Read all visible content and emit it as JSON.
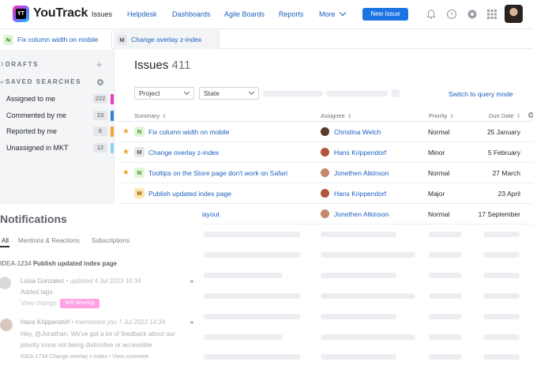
{
  "app": {
    "brand": "YouTrack",
    "logo_text": "YT",
    "nav": [
      "Issues",
      "Helpdesk",
      "Dashboards",
      "Agile Boards",
      "Reports",
      "More"
    ],
    "new_issue": "New Issue",
    "icons": [
      "bell-icon",
      "help-icon",
      "settings-icon",
      "apps-grid-icon"
    ]
  },
  "tabs": [
    {
      "badge": "N",
      "label": "Fix column width on mobile"
    },
    {
      "badge": "M",
      "label": "Change overlay z-index"
    }
  ],
  "sidebar": {
    "drafts": "DRAFTS",
    "saved_searches": "SAVED SEARCHES",
    "items": [
      {
        "label": "Assigned to me",
        "count": "222",
        "color": "#e73ec0"
      },
      {
        "label": "Commented by me",
        "count": "23",
        "color": "#2f7fd9"
      },
      {
        "label": "Reported by me",
        "count": "6",
        "color": "#f0a531"
      },
      {
        "label": "Unassigned in MKT",
        "count": "12",
        "color": "#8fd0f7"
      }
    ]
  },
  "main": {
    "title": "Issues",
    "count": "411",
    "filters": [
      "Project",
      "State"
    ],
    "query_link": "Switch to query mode",
    "columns": {
      "summary": "Summary",
      "assignee": "Assignee",
      "priority": "Priority",
      "due": "Due Date"
    },
    "rows": [
      {
        "starred": true,
        "badge": "N",
        "summary": "Fix column width on mobile",
        "assignee": "Christina Welch",
        "priority": "Normal",
        "due": "25 January",
        "avatar": "#5a3b2b"
      },
      {
        "starred": true,
        "badge": "M",
        "summary": "Change overlay z-index",
        "assignee": "Hans Krippendorf",
        "priority": "Minor",
        "due": "5 February",
        "avatar": "#b2553a"
      },
      {
        "starred": true,
        "badge": "N",
        "summary": "Tooltips on the Store page don't work on Safari",
        "assignee": "Jonethen Atkinson",
        "priority": "Normal",
        "due": "27 March",
        "avatar": "#c4896a"
      },
      {
        "starred": false,
        "badge": "M",
        "summary": "Publish updated index page",
        "assignee": "Hans Krippendorf",
        "priority": "Major",
        "due": "23 April",
        "avatar": "#b2553a"
      },
      {
        "starred": false,
        "badge": "",
        "summary": "e layout",
        "assignee": "Jonethen Atkinson",
        "priority": "Normal",
        "due": "17 September",
        "avatar": "#c4896a"
      }
    ],
    "star_glyph": "★"
  },
  "notifications": {
    "title": "Notifications",
    "tabs": [
      "All",
      "Mentions & Reactions",
      "Subscriptions"
    ],
    "issue_id": "IDEA-1234",
    "issue_title": "Publish updated index page",
    "items": [
      {
        "author": "Luisa Gonzalez",
        "action": "updated 4 Jul 2023 14:34",
        "line1": "Added tags:",
        "link": "View change",
        "tag": "Will develop"
      },
      {
        "author": "Hans Krippendorf",
        "action": "mentioned you 7 Jul 2023 14:34",
        "line1": "Hey, @Jonathan. We've got a lot of feedback about our",
        "line2": "priority icons not being distinctive or accessible",
        "ref": "IDEA-1734 Change overlay z-index",
        "link": "View comment"
      }
    ]
  }
}
